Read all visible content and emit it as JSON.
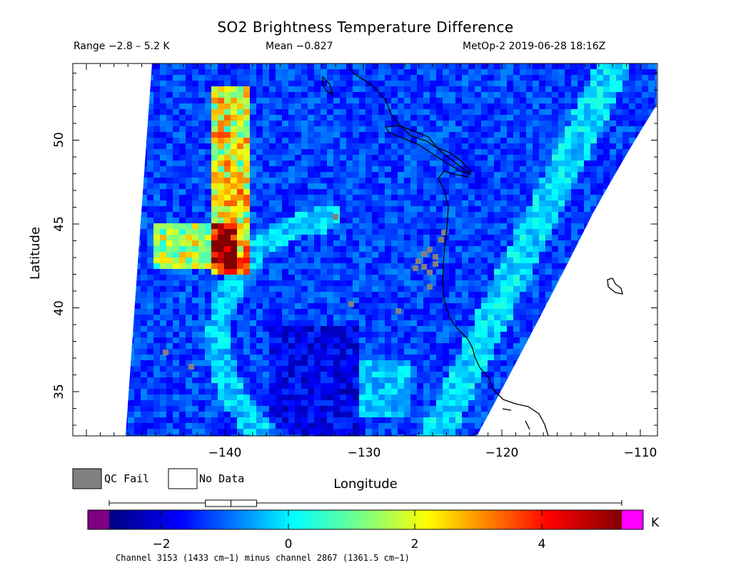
{
  "header": {
    "title": "SO2 Brightness Temperature Difference",
    "range": "Range −2.8 – 5.2 K",
    "mean": "Mean −0.827",
    "satellite_time": "MetOp-2 2019-06-28 18:16Z"
  },
  "axes": {
    "xlabel": "Longitude",
    "ylabel": "Latitude",
    "x_ticks": [
      "−140",
      "−130",
      "−120",
      "−110"
    ],
    "y_ticks": [
      "50",
      "45",
      "40",
      "35"
    ]
  },
  "legend": {
    "qc_fail": "QC Fail",
    "no_data": "No Data",
    "qc_color": "#808080"
  },
  "colorbar": {
    "unit": "K",
    "ticks": [
      "−2",
      "0",
      "2",
      "4"
    ],
    "under_color": "#800080",
    "over_color": "#ff00ff",
    "boxplot": {
      "min": -2.8,
      "q1": -1.3,
      "median": -0.9,
      "q3": -0.5,
      "max": 5.2
    }
  },
  "footnote": "Channel 3153 (1433 cm−1) minus channel 2867 (1361.5 cm−1)",
  "map": {
    "lon_range": [
      -149.5,
      -110
    ],
    "lat_range": [
      32.5,
      54.5
    ],
    "colors": {
      "coast": "#000000",
      "no_data": "#ffffff"
    }
  }
}
